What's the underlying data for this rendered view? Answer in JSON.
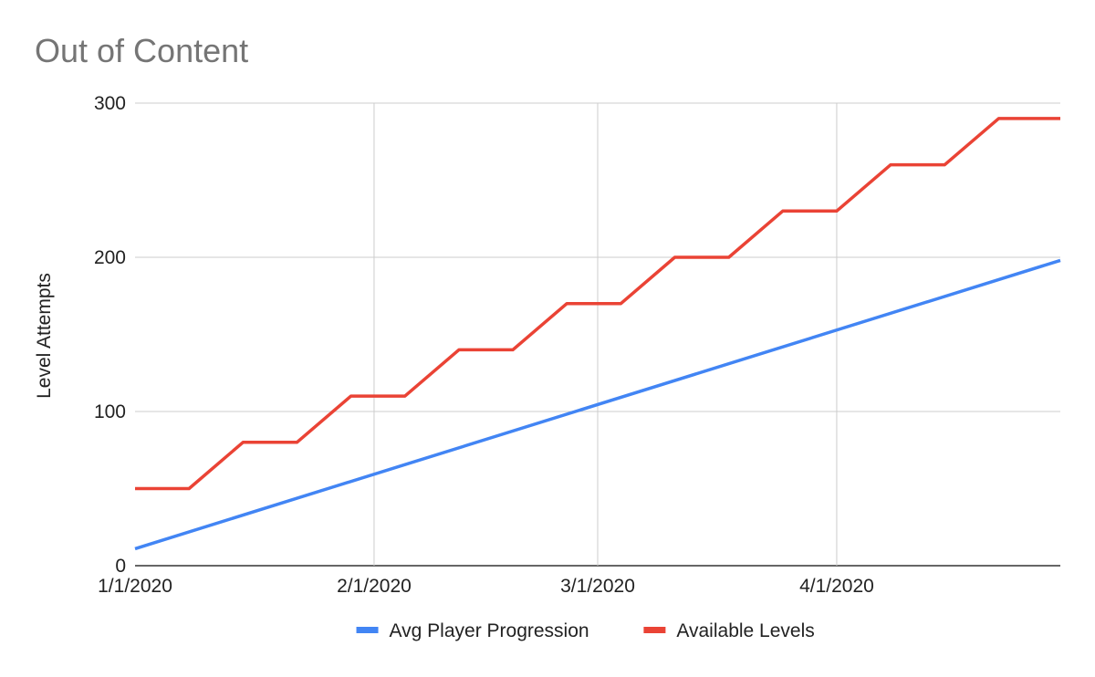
{
  "chart_data": {
    "type": "line",
    "title": "Out of Content",
    "xlabel": "",
    "ylabel": "Level Attempts",
    "x_type": "date",
    "xlim": [
      "2020-01-01",
      "2020-04-30"
    ],
    "ylim": [
      0,
      300
    ],
    "y_ticks": [
      0,
      100,
      200,
      300
    ],
    "x_ticks": [
      {
        "date": "2020-01-01",
        "label": "1/1/2020"
      },
      {
        "date": "2020-02-01",
        "label": "2/1/2020"
      },
      {
        "date": "2020-03-01",
        "label": "3/1/2020"
      },
      {
        "date": "2020-04-01",
        "label": "4/1/2020"
      }
    ],
    "grid": true,
    "legend_position": "bottom",
    "series": [
      {
        "name": "Avg Player Progression",
        "color": "#4285f4",
        "points": [
          {
            "x": "2020-01-01",
            "y": 11
          },
          {
            "x": "2020-04-30",
            "y": 198
          }
        ]
      },
      {
        "name": "Available Levels",
        "color": "#ea4335",
        "points": [
          {
            "x": "2020-01-01",
            "y": 50
          },
          {
            "x": "2020-01-08",
            "y": 50
          },
          {
            "x": "2020-01-15",
            "y": 80
          },
          {
            "x": "2020-01-22",
            "y": 80
          },
          {
            "x": "2020-01-29",
            "y": 110
          },
          {
            "x": "2020-02-05",
            "y": 110
          },
          {
            "x": "2020-02-12",
            "y": 140
          },
          {
            "x": "2020-02-19",
            "y": 140
          },
          {
            "x": "2020-02-26",
            "y": 170
          },
          {
            "x": "2020-03-04",
            "y": 170
          },
          {
            "x": "2020-03-11",
            "y": 200
          },
          {
            "x": "2020-03-18",
            "y": 200
          },
          {
            "x": "2020-03-25",
            "y": 230
          },
          {
            "x": "2020-04-01",
            "y": 230
          },
          {
            "x": "2020-04-08",
            "y": 260
          },
          {
            "x": "2020-04-15",
            "y": 260
          },
          {
            "x": "2020-04-22",
            "y": 290
          },
          {
            "x": "2020-04-30",
            "y": 290
          }
        ]
      }
    ]
  }
}
